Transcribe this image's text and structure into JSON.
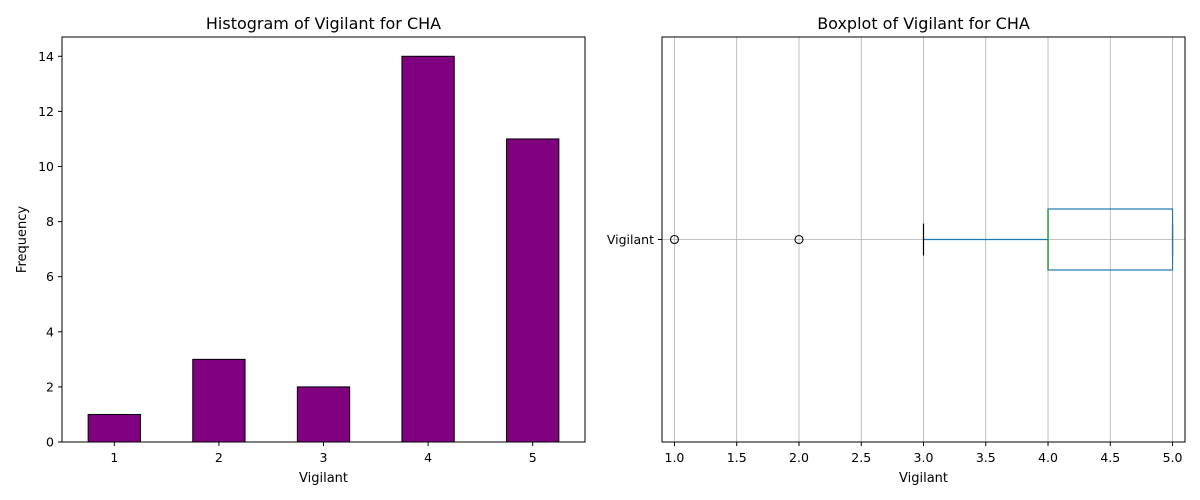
{
  "colors": {
    "bar_fill": "#800080",
    "bar_edge": "#000000",
    "box": "#1f77b4",
    "median": "#2ca02c",
    "grid": "#b0b0b0"
  },
  "chart_data": [
    {
      "type": "bar",
      "title": "Histogram of Vigilant for CHA",
      "xlabel": "Vigilant",
      "ylabel": "Frequency",
      "categories": [
        "1",
        "2",
        "3",
        "4",
        "5"
      ],
      "values": [
        1,
        3,
        2,
        14,
        11
      ],
      "ylim": [
        0,
        14.7
      ],
      "yticks": [
        0,
        2,
        4,
        6,
        8,
        10,
        12,
        14
      ],
      "grid": false
    },
    {
      "type": "box",
      "title": "Boxplot of Vigilant for CHA",
      "xlabel": "Vigilant",
      "category": "Vigilant",
      "orientation": "horizontal",
      "whisker_low": 3,
      "q1": 4,
      "median": 4,
      "q3": 5,
      "whisker_high": 5,
      "outliers": [
        1,
        2
      ],
      "xlim": [
        0.9,
        5.1
      ],
      "xticks": [
        "1.0",
        "1.5",
        "2.0",
        "2.5",
        "3.0",
        "3.5",
        "4.0",
        "4.5",
        "5.0"
      ],
      "grid": true
    }
  ]
}
